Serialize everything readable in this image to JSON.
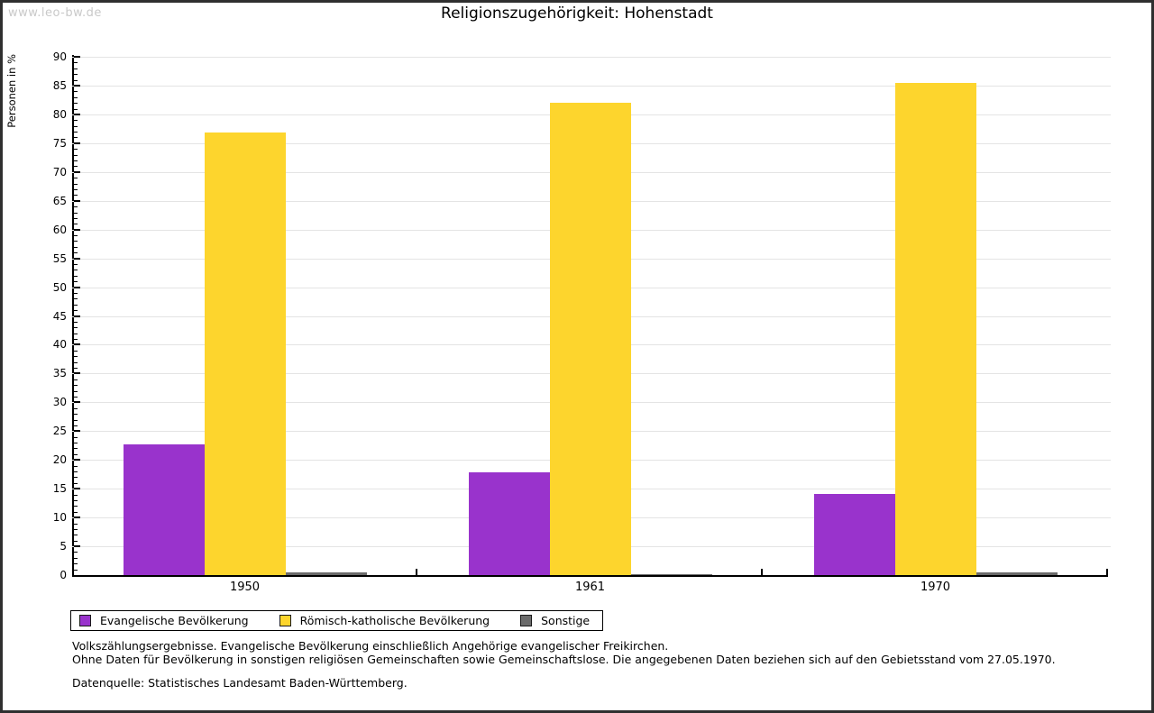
{
  "watermark": "www.leo-bw.de",
  "title": "Religionszugehörigkeit: Hohenstadt",
  "chart_data": {
    "type": "bar",
    "title": "Religionszugehörigkeit: Hohenstadt",
    "categories": [
      "1950",
      "1961",
      "1970"
    ],
    "series": [
      {
        "name": "Evangelische Bevölkerung",
        "color": "#9933cc",
        "values": [
          22.7,
          17.9,
          14.1
        ]
      },
      {
        "name": "Römisch-katholische Bevölkerung",
        "color": "#fdd52d",
        "values": [
          76.9,
          82.0,
          85.4
        ]
      },
      {
        "name": "Sonstige",
        "color": "#6b6b6b",
        "values": [
          0.4,
          0.1,
          0.5
        ]
      }
    ],
    "xlabel": "",
    "ylabel": "Personen in %",
    "ylim": [
      0,
      90
    ],
    "ytick_step": 5,
    "yminor_step": 1,
    "y_ticks": [
      0,
      5,
      10,
      15,
      20,
      25,
      30,
      35,
      40,
      45,
      50,
      55,
      60,
      65,
      70,
      75,
      80,
      85,
      90
    ],
    "grid": "horizontal",
    "gridline_color": "#e4e4e4",
    "legend_position": "bottom"
  },
  "footnotes": {
    "line1": "Volkszählungsergebnisse. Evangelische Bevölkerung einschließlich Angehörige evangelischer Freikirchen.",
    "line2": "Ohne Daten für Bevölkerung in sonstigen religiösen Gemeinschaften sowie Gemeinschaftslose. Die angegebenen Daten beziehen sich auf den Gebietsstand vom 27.05.1970.",
    "source": "Datenquelle: Statistisches Landesamt Baden-Württemberg."
  }
}
